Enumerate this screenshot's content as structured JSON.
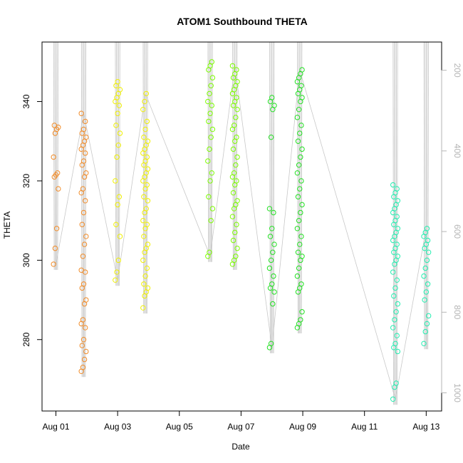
{
  "chart_data": {
    "type": "scatter",
    "title": "ATOM1 Southbound THETA",
    "xlabel": "Date",
    "ylabel": "THETA",
    "x_ticks": [
      "Aug 01",
      "Aug 03",
      "Aug 05",
      "Aug 07",
      "Aug 09",
      "Aug 11",
      "Aug 13"
    ],
    "x_tick_days": [
      1,
      3,
      5,
      7,
      9,
      11,
      13
    ],
    "xlim_days": [
      0.55,
      13.5
    ],
    "ylim": [
      262,
      355
    ],
    "y_ticks": [
      280,
      300,
      320,
      340
    ],
    "right_axis": {
      "label": "",
      "ticks": [
        200,
        400,
        600,
        800,
        1000
      ],
      "reversed": true,
      "range": [
        130,
        1045
      ],
      "color": "#b5b5b5"
    },
    "marker": "open-circle",
    "grid": false,
    "legend": "none",
    "series": [
      {
        "day": 1.0,
        "color": "#f28c28",
        "values": [
          299,
          303,
          308,
          318,
          321,
          321.5,
          322,
          326,
          332,
          333,
          333.5,
          334
        ]
      },
      {
        "day": 1.9,
        "color": "#f28c28",
        "values": [
          272,
          273,
          275,
          277,
          278.5,
          280,
          283,
          284,
          285,
          289,
          290,
          293,
          294,
          297,
          297.5,
          301,
          304,
          306,
          309,
          312,
          315,
          317,
          318,
          321,
          322,
          324,
          325,
          327,
          328,
          329,
          330,
          331,
          332,
          333,
          335,
          337
        ]
      },
      {
        "day": 3.0,
        "color": "#f0f000",
        "values": [
          295,
          297,
          300,
          306,
          309,
          314,
          316,
          320,
          326,
          329,
          332,
          334,
          337,
          339,
          340,
          341,
          342,
          343,
          344,
          345
        ]
      },
      {
        "day": 3.9,
        "color": "#f0f000",
        "values": [
          288,
          291,
          292,
          293,
          294,
          296,
          298,
          300,
          302,
          303,
          304,
          306,
          308,
          309,
          310,
          312,
          313,
          315,
          316,
          318,
          319,
          320,
          321,
          322,
          323,
          324,
          325,
          326,
          327,
          328,
          329,
          330,
          331,
          333,
          335,
          338,
          340,
          342
        ]
      },
      {
        "day": 6.0,
        "color": "#7cfc00",
        "values": [
          301,
          302,
          310,
          313,
          316,
          320,
          322,
          325,
          328,
          331,
          333,
          335,
          337,
          339,
          340,
          342,
          344,
          346,
          348,
          349,
          350
        ]
      },
      {
        "day": 6.8,
        "color": "#7cfc00",
        "values": [
          299,
          300,
          301,
          303,
          305,
          307,
          309,
          311,
          313,
          314,
          315,
          317,
          319,
          320,
          321,
          322,
          324,
          326,
          328,
          330,
          331,
          333,
          334,
          336,
          338,
          339,
          340,
          341,
          342,
          343,
          344,
          345,
          346,
          347,
          348,
          349
        ]
      },
      {
        "day": 8.0,
        "color": "#22e022",
        "values": [
          278,
          279,
          289,
          292,
          293,
          294,
          296,
          298,
          300,
          302,
          304,
          306,
          308,
          312,
          313,
          331,
          338,
          339,
          340,
          341
        ]
      },
      {
        "day": 8.9,
        "color": "#22e022",
        "values": [
          283,
          284,
          285,
          287,
          292,
          293,
          294,
          296,
          298,
          300,
          301,
          302,
          304,
          306,
          308,
          310,
          312,
          314,
          316,
          318,
          320,
          322,
          324,
          326,
          328,
          330,
          332,
          334,
          336,
          338,
          340,
          341,
          342,
          343,
          344,
          345,
          346,
          347,
          348
        ]
      },
      {
        "day": 12.0,
        "color": "#22eeb0",
        "values": [
          265,
          268,
          269,
          277,
          278,
          279,
          281,
          283,
          285,
          287,
          289,
          291,
          293,
          295,
          297,
          299,
          300,
          301,
          302,
          303,
          304,
          305,
          306,
          307,
          308,
          309,
          310,
          311,
          312,
          313,
          314,
          315,
          316,
          317,
          318,
          319
        ]
      },
      {
        "day": 13.0,
        "color": "#22eeb0",
        "values": [
          279,
          282,
          284,
          286,
          290,
          292,
          294,
          296,
          298,
          300,
          302,
          303,
          304,
          305,
          306,
          307,
          308
        ]
      }
    ]
  }
}
